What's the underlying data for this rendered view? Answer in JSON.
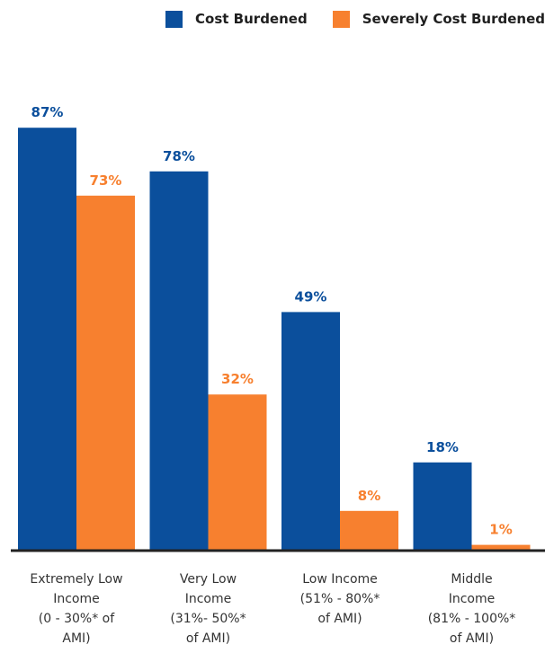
{
  "legend": {
    "cost_burdened": "Cost Burdened",
    "severely_cost_burdened": "Severely Cost Burdened"
  },
  "colors": {
    "cost_burdened": "#0b4f9c",
    "severely_cost_burdened": "#f7802f",
    "axis": "#222222"
  },
  "chart_data": {
    "type": "bar",
    "categories": [
      [
        "Extremely Low",
        "Income",
        "(0 - 30%* of",
        "AMI)"
      ],
      [
        "Very Low",
        "Income",
        "(31%- 50%*",
        "of AMI)"
      ],
      [
        "Low Income",
        "(51% - 80%*",
        "of AMI)"
      ],
      [
        "Middle",
        "Income",
        "(81% - 100%*",
        "of AMI)"
      ]
    ],
    "series": [
      {
        "name": "Cost Burdened",
        "values": [
          87,
          78,
          49,
          18
        ]
      },
      {
        "name": "Severely Cost Burdened",
        "values": [
          73,
          32,
          8,
          1
        ]
      }
    ],
    "value_labels": [
      [
        "87%",
        "78%",
        "49%",
        "18%"
      ],
      [
        "73%",
        "32%",
        "8%",
        "1%"
      ]
    ],
    "ylim": [
      0,
      100
    ],
    "grid": false,
    "legend_position": "top-right"
  }
}
